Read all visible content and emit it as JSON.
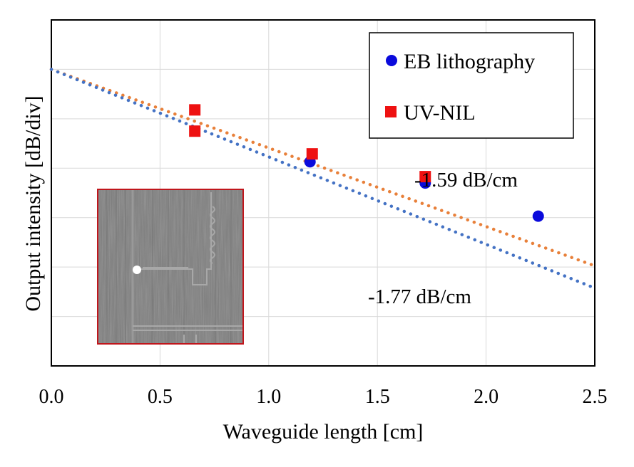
{
  "chart_data": {
    "type": "scatter",
    "xlabel": "Waveguide length [cm]",
    "ylabel": "Output intensity  [dB/div]",
    "xlim": [
      0.0,
      2.5
    ],
    "ylim": [
      -6.0,
      1.0
    ],
    "y_tick_step": 1,
    "x_ticks": [
      "0.0",
      "0.5",
      "1.0",
      "1.5",
      "2.0",
      "2.5"
    ],
    "grid": true,
    "legend_position": "top-right",
    "series": [
      {
        "name": "EB lithography",
        "marker": "circle",
        "color": "#0a0adc",
        "points": [
          [
            1.19,
            -1.87
          ],
          [
            1.72,
            -2.3
          ],
          [
            2.24,
            -2.97
          ]
        ]
      },
      {
        "name": "UV-NIL",
        "marker": "square",
        "color": "#ee1111",
        "points": [
          [
            0.66,
            -0.82
          ],
          [
            0.66,
            -1.25
          ],
          [
            1.2,
            -1.71
          ],
          [
            1.72,
            -2.17
          ]
        ]
      }
    ],
    "trendlines": [
      {
        "label": "-1.59 dB/cm",
        "slope": -1.59,
        "intercept": 0.0,
        "x_range": [
          0.0,
          2.5
        ],
        "color": "#e8803a"
      },
      {
        "label": "-1.77 dB/cm",
        "slope": -1.77,
        "intercept": 0.0,
        "x_range": [
          0.0,
          2.5
        ],
        "color": "#4472c4"
      }
    ],
    "annotations": [
      "-1.59 dB/cm",
      "-1.77 dB/cm"
    ]
  }
}
